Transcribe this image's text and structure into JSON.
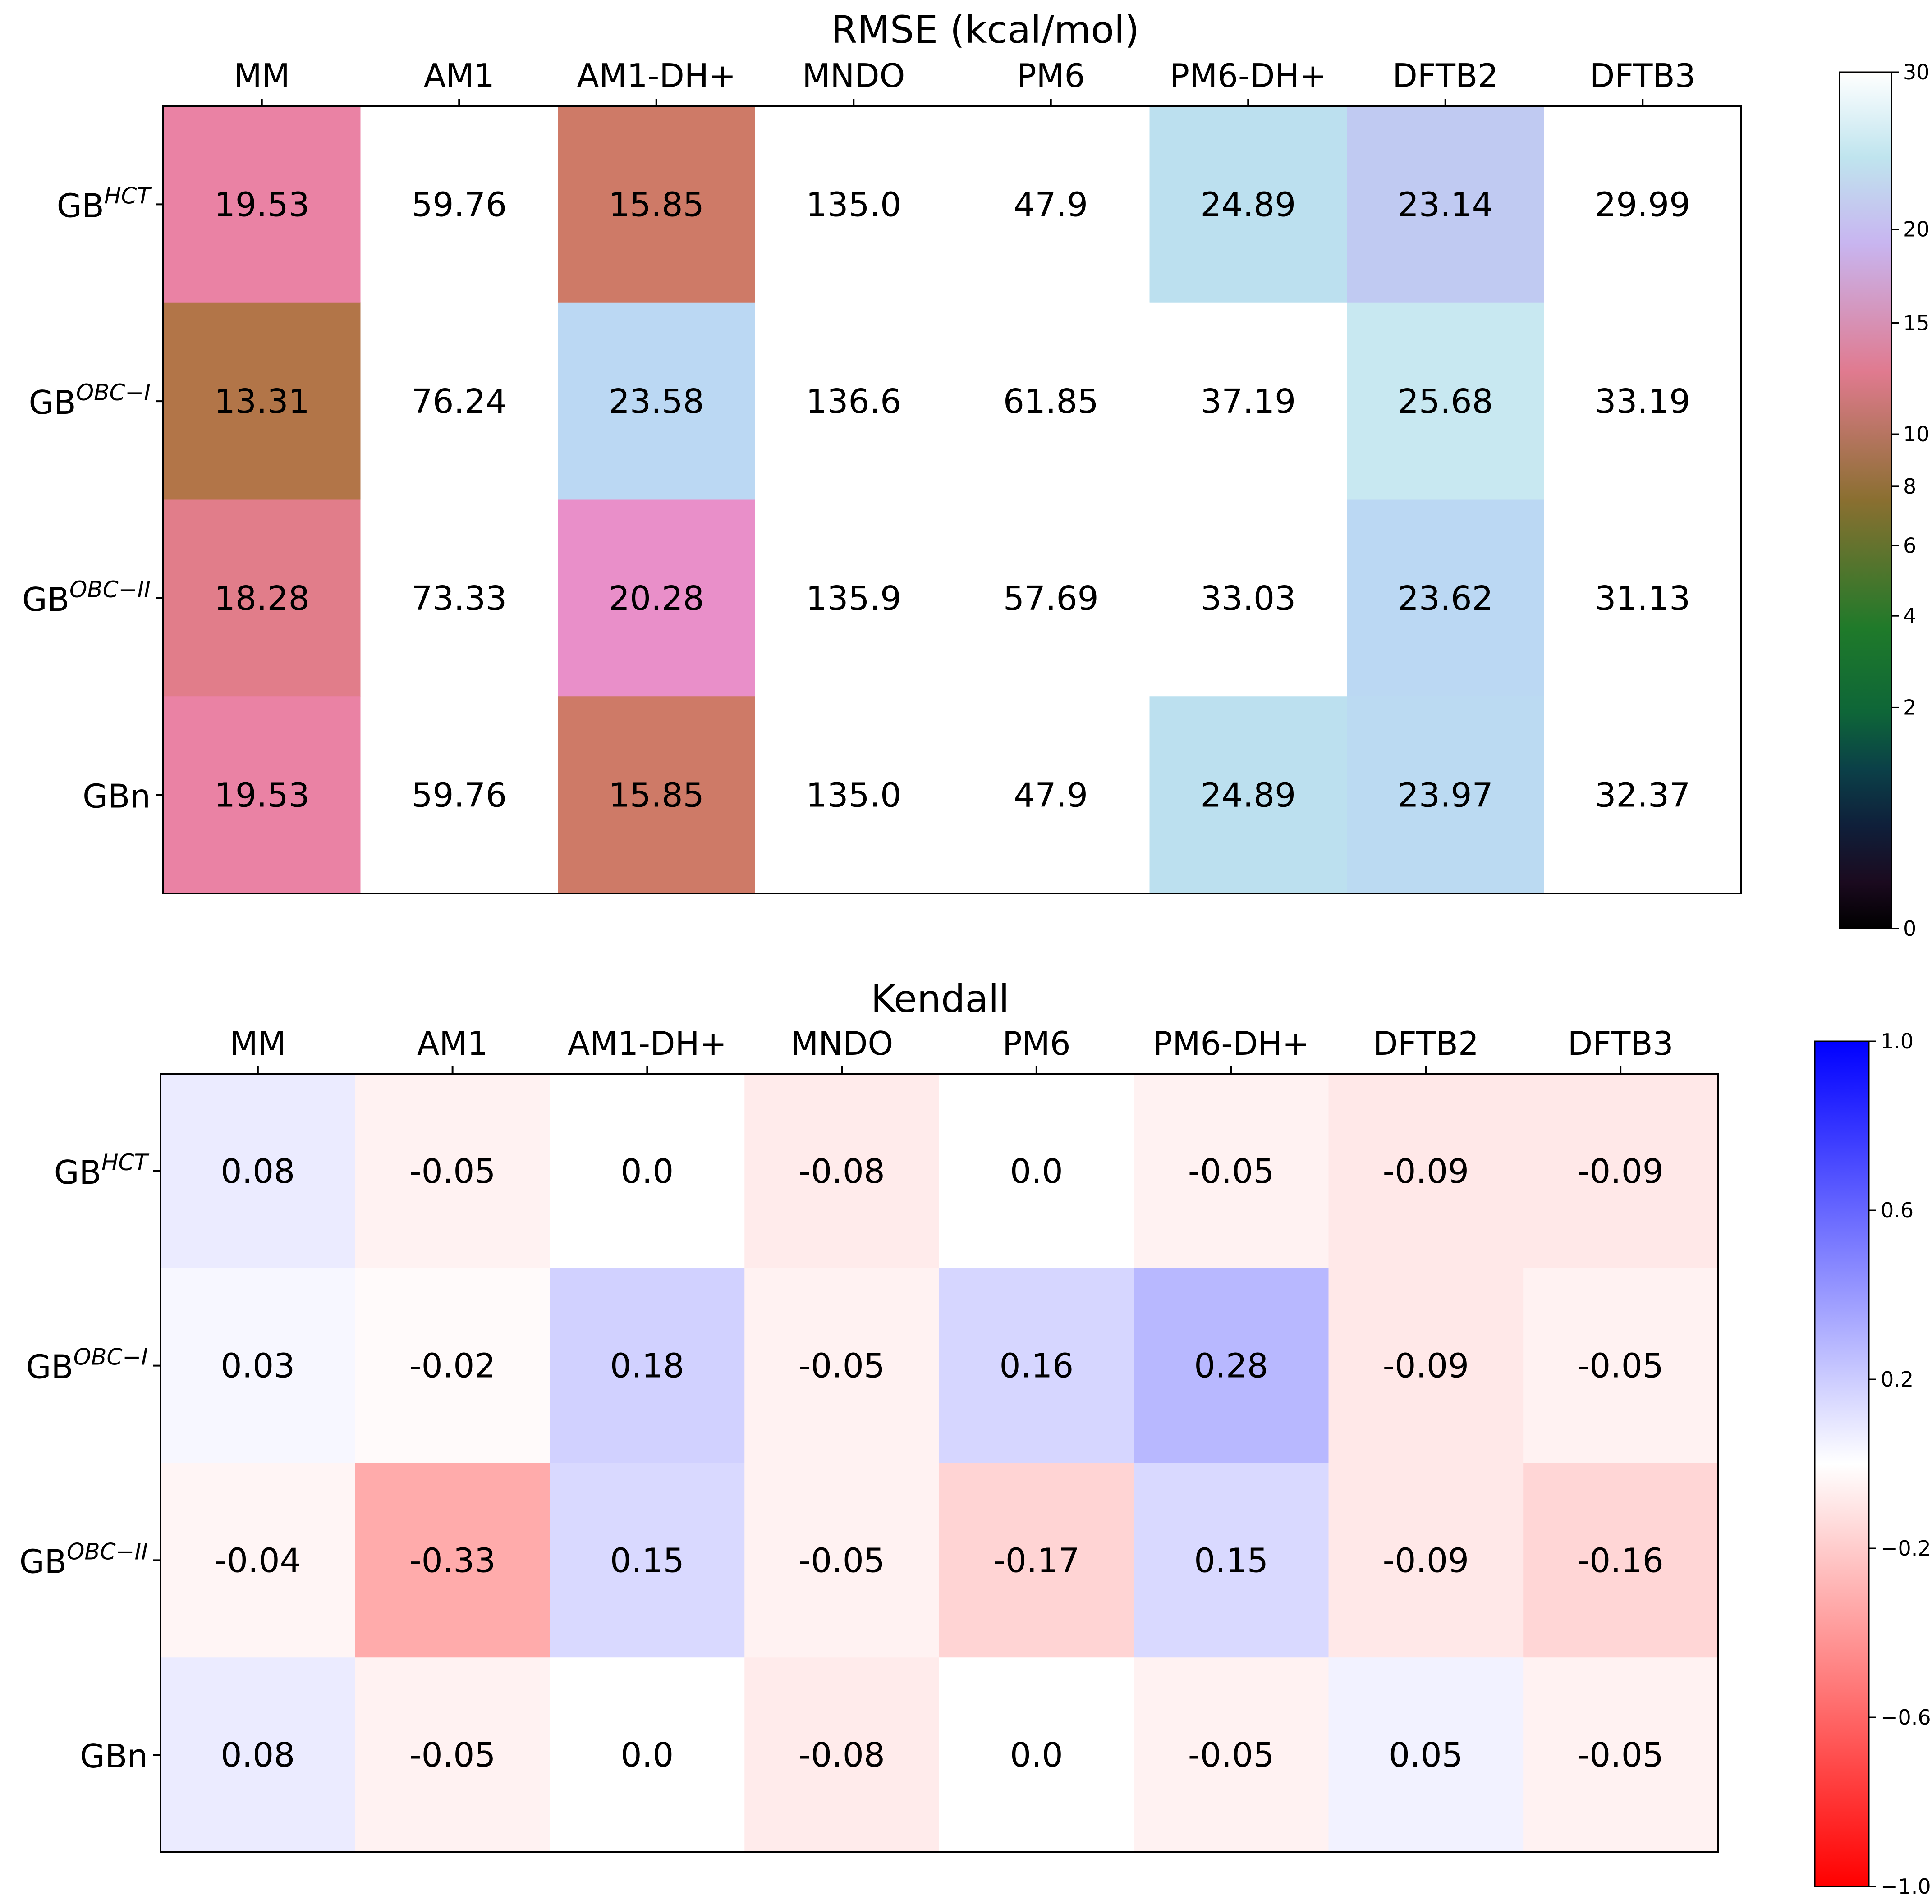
{
  "chart_data": [
    {
      "type": "heatmap",
      "id": "rmse",
      "title": "RMSE (kcal/mol)",
      "columns": [
        "MM",
        "AM1",
        "AM1-DH+",
        "MNDO",
        "PM6",
        "PM6-DH+",
        "DFTB2",
        "DFTB3"
      ],
      "rows": [
        {
          "base": "GB",
          "sup": "HCT"
        },
        {
          "base": "GB",
          "sup": "OBC−I"
        },
        {
          "base": "GB",
          "sup": "OBC−II"
        },
        {
          "base": "GBn",
          "sup": ""
        }
      ],
      "values": [
        [
          19.53,
          59.76,
          15.85,
          135.0,
          47.9,
          24.89,
          23.14,
          29.99
        ],
        [
          13.31,
          76.24,
          23.58,
          136.6,
          61.85,
          37.19,
          25.68,
          33.19
        ],
        [
          18.28,
          73.33,
          20.28,
          135.9,
          57.69,
          33.03,
          23.62,
          31.13
        ],
        [
          19.53,
          59.76,
          15.85,
          135.0,
          47.9,
          24.89,
          23.97,
          32.37
        ]
      ],
      "value_labels": [
        [
          "19.53",
          "59.76",
          "15.85",
          "135.0",
          "47.9",
          "24.89",
          "23.14",
          "29.99"
        ],
        [
          "13.31",
          "76.24",
          "23.58",
          "136.6",
          "61.85",
          "37.19",
          "25.68",
          "33.19"
        ],
        [
          "18.28",
          "73.33",
          "20.28",
          "135.9",
          "57.69",
          "33.03",
          "23.62",
          "31.13"
        ],
        [
          "19.53",
          "59.76",
          "15.85",
          "135.0",
          "47.9",
          "24.89",
          "23.97",
          "32.37"
        ]
      ],
      "colormap": "cubehelix",
      "scale": "power-law (approx. gamma 0.5)",
      "vmin": 0,
      "vmax": 30,
      "colorbar": {
        "ticks": [
          0,
          2,
          4,
          6,
          8,
          10,
          15,
          20,
          30
        ],
        "tick_labels": [
          "0",
          "2",
          "4",
          "6",
          "8",
          "10",
          "15",
          "20",
          "30"
        ]
      },
      "xlabel": "",
      "ylabel": ""
    },
    {
      "type": "heatmap",
      "id": "kendall",
      "title": "Kendall",
      "columns": [
        "MM",
        "AM1",
        "AM1-DH+",
        "MNDO",
        "PM6",
        "PM6-DH+",
        "DFTB2",
        "DFTB3"
      ],
      "rows": [
        {
          "base": "GB",
          "sup": "HCT"
        },
        {
          "base": "GB",
          "sup": "OBC−I"
        },
        {
          "base": "GB",
          "sup": "OBC−II"
        },
        {
          "base": "GBn",
          "sup": ""
        }
      ],
      "values": [
        [
          0.08,
          -0.05,
          0.0,
          -0.08,
          0.0,
          -0.05,
          -0.09,
          -0.09
        ],
        [
          0.03,
          -0.02,
          0.18,
          -0.05,
          0.16,
          0.28,
          -0.09,
          -0.05
        ],
        [
          -0.04,
          -0.33,
          0.15,
          -0.05,
          -0.17,
          0.15,
          -0.09,
          -0.16
        ],
        [
          0.08,
          -0.05,
          0.0,
          -0.08,
          0.0,
          -0.05,
          0.05,
          -0.05
        ]
      ],
      "value_labels": [
        [
          "0.08",
          "-0.05",
          "0.0",
          "-0.08",
          "0.0",
          "-0.05",
          "-0.09",
          "-0.09"
        ],
        [
          "0.03",
          "-0.02",
          "0.18",
          "-0.05",
          "0.16",
          "0.28",
          "-0.09",
          "-0.05"
        ],
        [
          "-0.04",
          "-0.33",
          "0.15",
          "-0.05",
          "-0.17",
          "0.15",
          "-0.09",
          "-0.16"
        ],
        [
          "0.08",
          "-0.05",
          "0.0",
          "-0.08",
          "0.0",
          "-0.05",
          "0.05",
          "-0.05"
        ]
      ],
      "colormap": "bwr_r",
      "scale": "linear",
      "vmin": -1.0,
      "vmax": 1.0,
      "colorbar": {
        "ticks": [
          1.0,
          0.6,
          0.2,
          -0.2,
          -0.6,
          -1.0
        ],
        "tick_labels": [
          "1.0",
          "0.6",
          "0.2",
          "−0.2",
          "−0.6",
          "−1.0"
        ]
      },
      "xlabel": "",
      "ylabel": ""
    }
  ]
}
